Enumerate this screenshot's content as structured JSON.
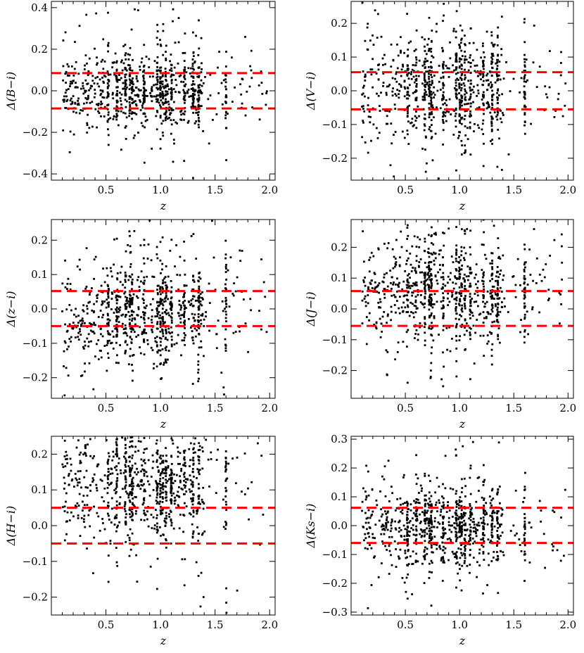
{
  "chart_data": [
    {
      "type": "scatter",
      "xlabel": "z",
      "ylabel": "Δ(B−i)",
      "xlim": [
        0.0,
        2.05
      ],
      "ylim": [
        -0.43,
        0.43
      ],
      "xticks": [
        "0.5",
        "1.0",
        "1.5",
        "2.0"
      ],
      "xtick_values": [
        0.5,
        1.0,
        1.5,
        2.0
      ],
      "yticks": [
        "−0.4",
        "−0.2",
        "0.0",
        "0.2",
        "0.4"
      ],
      "ytick_values": [
        -0.4,
        -0.2,
        0.0,
        0.2,
        0.4
      ],
      "reference_lines": [
        0.085,
        -0.085
      ],
      "reference_color": "#ff0000",
      "point_color": "#000000",
      "point_count": 900,
      "x_range": [
        0.1,
        1.98
      ],
      "spread_center": 0.005,
      "spread_sigma": 0.085
    },
    {
      "type": "scatter",
      "xlabel": "z",
      "ylabel": "Δ(V−i)",
      "xlim": [
        0.0,
        2.05
      ],
      "ylim": [
        -0.265,
        0.265
      ],
      "xticks": [
        "0.5",
        "1.0",
        "1.5",
        "2.0"
      ],
      "xtick_values": [
        0.5,
        1.0,
        1.5,
        2.0
      ],
      "yticks": [
        "−0.2",
        "−0.1",
        "0.0",
        "0.1",
        "0.2"
      ],
      "ytick_values": [
        -0.2,
        -0.1,
        0.0,
        0.1,
        0.2
      ],
      "reference_lines": [
        0.055,
        -0.055
      ],
      "reference_color": "#ff0000",
      "point_color": "#000000",
      "point_count": 900,
      "x_range": [
        0.1,
        1.98
      ],
      "spread_center": 0.01,
      "spread_sigma": 0.075
    },
    {
      "type": "scatter",
      "xlabel": "z",
      "ylabel": "Δ(z−i)",
      "xlim": [
        0.0,
        2.05
      ],
      "ylim": [
        -0.26,
        0.26
      ],
      "xticks": [
        "0.5",
        "1.0",
        "1.5",
        "2.0"
      ],
      "xtick_values": [
        0.5,
        1.0,
        1.5,
        2.0
      ],
      "yticks": [
        "−0.2",
        "−0.1",
        "0.0",
        "0.1",
        "0.2"
      ],
      "ytick_values": [
        -0.2,
        -0.1,
        0.0,
        0.1,
        0.2
      ],
      "reference_lines": [
        0.052,
        -0.05
      ],
      "reference_color": "#ff0000",
      "point_color": "#000000",
      "point_count": 900,
      "x_range": [
        0.1,
        1.98
      ],
      "spread_center": -0.01,
      "spread_sigma": 0.07
    },
    {
      "type": "scatter",
      "xlabel": "z",
      "ylabel": "Δ(J−i)",
      "xlim": [
        0.0,
        2.05
      ],
      "ylim": [
        -0.29,
        0.29
      ],
      "xticks": [
        "0.5",
        "1.0",
        "1.5",
        "2.0"
      ],
      "xtick_values": [
        0.5,
        1.0,
        1.5,
        2.0
      ],
      "yticks": [
        "−0.2",
        "−0.1",
        "0.0",
        "0.1",
        "0.2"
      ],
      "ytick_values": [
        -0.2,
        -0.1,
        0.0,
        0.1,
        0.2
      ],
      "reference_lines": [
        0.058,
        -0.055
      ],
      "reference_color": "#ff0000",
      "point_color": "#000000",
      "point_count": 900,
      "x_range": [
        0.1,
        1.98
      ],
      "spread_center": 0.06,
      "spread_sigma": 0.08
    },
    {
      "type": "scatter",
      "xlabel": "z",
      "ylabel": "Δ(H−i)",
      "xlim": [
        0.0,
        2.05
      ],
      "ylim": [
        -0.25,
        0.25
      ],
      "xticks": [
        "0.5",
        "1.0",
        "1.5",
        "2.0"
      ],
      "xtick_values": [
        0.5,
        1.0,
        1.5,
        2.0
      ],
      "yticks": [
        "−0.2",
        "−0.1",
        "0.0",
        "0.1",
        "0.2"
      ],
      "ytick_values": [
        -0.2,
        -0.1,
        0.0,
        0.1,
        0.2
      ],
      "reference_lines": [
        0.05,
        -0.05
      ],
      "reference_color": "#ff0000",
      "point_color": "#000000",
      "point_count": 900,
      "x_range": [
        0.1,
        1.98
      ],
      "spread_center": 0.12,
      "spread_sigma": 0.08
    },
    {
      "type": "scatter",
      "xlabel": "z",
      "ylabel": "Δ(Ks−i)",
      "xlim": [
        0.0,
        2.05
      ],
      "ylim": [
        -0.31,
        0.31
      ],
      "xticks": [
        "0.5",
        "1.0",
        "1.5",
        "2.0"
      ],
      "xtick_values": [
        0.5,
        1.0,
        1.5,
        2.0
      ],
      "yticks": [
        "−0.3",
        "−0.2",
        "−0.1",
        "0.0",
        "0.1",
        "0.2",
        "0.3"
      ],
      "ytick_values": [
        -0.3,
        -0.2,
        -0.1,
        0.0,
        0.1,
        0.2,
        0.3
      ],
      "reference_lines": [
        0.062,
        -0.06
      ],
      "reference_color": "#ff0000",
      "point_color": "#000000",
      "point_count": 900,
      "x_range": [
        0.1,
        1.98
      ],
      "spread_center": 0.0,
      "spread_sigma": 0.07
    }
  ]
}
